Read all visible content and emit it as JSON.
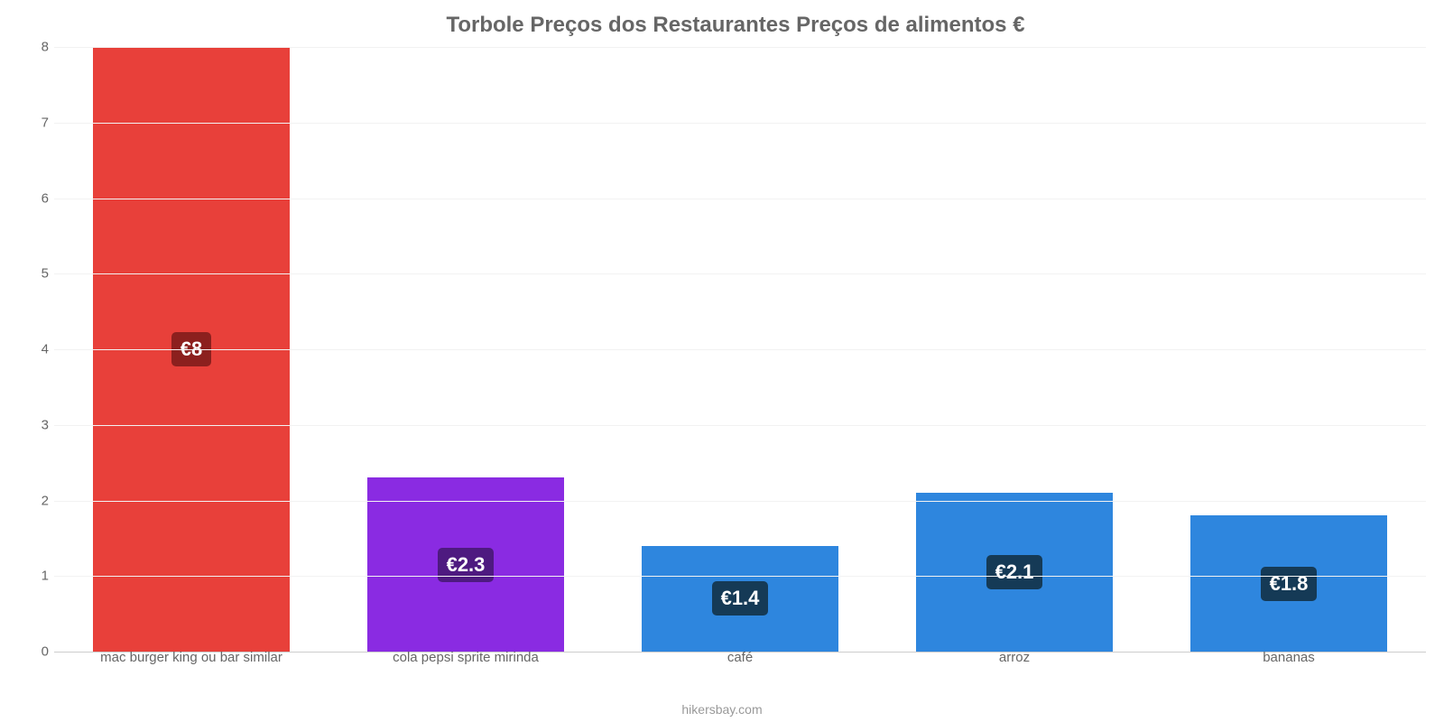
{
  "chart": {
    "type": "bar",
    "title": "Torbole Preços dos Restaurantes Preços de alimentos €",
    "title_fontsize": 24,
    "title_color": "#666666",
    "attribution": "hikersbay.com",
    "attribution_color": "#999999",
    "background_color": "#ffffff",
    "grid_color": "#f2f2f2",
    "baseline_color": "#cccccc",
    "axis_label_color": "#666666",
    "axis_label_fontsize": 15,
    "ylim": [
      0,
      8
    ],
    "ytick_step": 1,
    "yticks": [
      0,
      1,
      2,
      3,
      4,
      5,
      6,
      7,
      8
    ],
    "bar_width_ratio": 0.72,
    "categories": [
      "mac burger king ou bar similar",
      "cola pepsi sprite mirinda",
      "café",
      "arroz",
      "bananas"
    ],
    "values": [
      8,
      2.3,
      1.4,
      2.1,
      1.8
    ],
    "value_labels": [
      "€8",
      "€2.3",
      "€1.4",
      "€2.1",
      "€1.8"
    ],
    "bar_colors": [
      "#e8403a",
      "#8a2be2",
      "#2e86de",
      "#2e86de",
      "#2e86de"
    ],
    "label_bg_colors": [
      "#8c201e",
      "#4e1a80",
      "#153a56",
      "#153a56",
      "#153a56"
    ],
    "label_text_color": "#ffffff",
    "label_fontsize": 22,
    "label_border_radius": 5
  }
}
